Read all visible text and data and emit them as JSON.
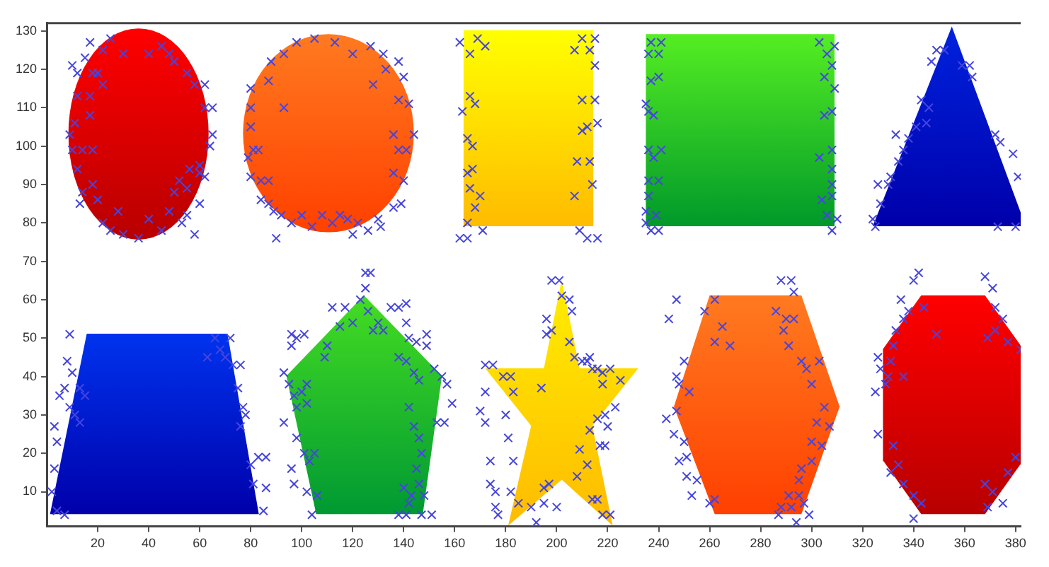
{
  "chart_data": {
    "type": "scatter",
    "xlim": [
      0,
      382
    ],
    "ylim": [
      1,
      132
    ],
    "xticks": [
      20,
      40,
      60,
      80,
      100,
      120,
      140,
      160,
      180,
      200,
      220,
      240,
      260,
      280,
      300,
      320,
      340,
      360,
      380
    ],
    "yticks": [
      10,
      20,
      30,
      40,
      50,
      60,
      70,
      80,
      90,
      100,
      110,
      120,
      130
    ],
    "grid": false,
    "legend": false,
    "marker": "cross",
    "series": [
      {
        "color": "#4545e0",
        "x": [
          10,
          12,
          12,
          11,
          9,
          10,
          14,
          18,
          12,
          14,
          13,
          18,
          20,
          22,
          25,
          28,
          30,
          36,
          40,
          45,
          48,
          53,
          55,
          58,
          60,
          62,
          60,
          64,
          65,
          62,
          65,
          62,
          58,
          55,
          50,
          48,
          45,
          40,
          30,
          25,
          22,
          17,
          18,
          15,
          20,
          22,
          17,
          17,
          50,
          52,
          55,
          56,
          60,
          80,
          80,
          80,
          81,
          79,
          80,
          83,
          84,
          87,
          84,
          87,
          89,
          90,
          92,
          96,
          100,
          104,
          108,
          112,
          115,
          118,
          120,
          122,
          126,
          130,
          131,
          136,
          139,
          140,
          136,
          138,
          141,
          144,
          136,
          142,
          138,
          140,
          133,
          138,
          132,
          127,
          120,
          113,
          105,
          98,
          93,
          88,
          87,
          93,
          128,
          125,
          162,
          166,
          169,
          172,
          166,
          163,
          168,
          165,
          167,
          165,
          167,
          166,
          168,
          165,
          170,
          162,
          165,
          171,
          210,
          215,
          207,
          213,
          215,
          210,
          215,
          212,
          210,
          216,
          208,
          213,
          214,
          207,
          209,
          212,
          216,
          237,
          241,
          236,
          240,
          240,
          237,
          235,
          236,
          238,
          236,
          241,
          238,
          236,
          240,
          236,
          235,
          239,
          235,
          237,
          240,
          303,
          309,
          306,
          308,
          305,
          309,
          305,
          308,
          303,
          308,
          308,
          308,
          304,
          308,
          306,
          310,
          308,
          349,
          352,
          347,
          359,
          362,
          363,
          343,
          346,
          341,
          345,
          333,
          338,
          336,
          334,
          331,
          326,
          330,
          327,
          324,
          325,
          372,
          374,
          373,
          380,
          381,
          379,
          9,
          8,
          10,
          5,
          7,
          9,
          3,
          4,
          3,
          2,
          4,
          7,
          13,
          11,
          13,
          15,
          63,
          66,
          68,
          70,
          72,
          73,
          76,
          75,
          77,
          78,
          76,
          80,
          83,
          86,
          86,
          85,
          81,
          96,
          98,
          101,
          96,
          95,
          93,
          97,
          93,
          98,
          100,
          102,
          102,
          98,
          96,
          97,
          101,
          103,
          105,
          102,
          104,
          106,
          109,
          110,
          112,
          115,
          117,
          120,
          123,
          125,
          127,
          126,
          128,
          130,
          132,
          135,
          138,
          141,
          141,
          142,
          138,
          141,
          145,
          149,
          149,
          144,
          146,
          152,
          155,
          157,
          159,
          156,
          153,
          142,
          144,
          146,
          147,
          145,
          146,
          148,
          142,
          138,
          141,
          147,
          151,
          140,
          143,
          172,
          175,
          172,
          170,
          172,
          174,
          174,
          176,
          176,
          177,
          179,
          182,
          183,
          180,
          181,
          183,
          182,
          185,
          190,
          195,
          200,
          192,
          195,
          197,
          194,
          196,
          198,
          196,
          198,
          201,
          202,
          205,
          206,
          205,
          207,
          210,
          212,
          213,
          214,
          216,
          218,
          221,
          225,
          223,
          218,
          219,
          216,
          220,
          213,
          217,
          219,
          209,
          212,
          214,
          216,
          218,
          221,
          208,
          244,
          247,
          247,
          250,
          248,
          252,
          247,
          243,
          246,
          250,
          251,
          248,
          251,
          255,
          253,
          260,
          262,
          258,
          262,
          265,
          262,
          268,
          288,
          292,
          293,
          286,
          290,
          293,
          289,
          291,
          296,
          298,
          303,
          300,
          305,
          302,
          307,
          300,
          304,
          300,
          296,
          295,
          291,
          288,
          292,
          297,
          299,
          287,
          294,
          295,
          326,
          327,
          331,
          332,
          333,
          336,
          335,
          338,
          340,
          342,
          344,
          349,
          325,
          330,
          336,
          329,
          326,
          332,
          334,
          331,
          336,
          340,
          343,
          340,
          368,
          371,
          372,
          375,
          372,
          369,
          377,
          382,
          380,
          377,
          371,
          368,
          369,
          375
        ],
        "values": [
          121,
          119,
          113,
          106,
          103,
          99,
          99,
          99,
          94,
          88,
          85,
          90,
          86,
          80,
          78,
          83,
          77,
          76,
          81,
          78,
          83,
          80,
          82,
          77,
          85,
          92,
          95,
          100,
          103,
          110,
          110,
          116,
          116,
          119,
          122,
          124,
          126,
          124,
          124,
          128,
          125,
          127,
          119,
          123,
          119,
          116,
          113,
          108,
          88,
          91,
          89,
          94,
          93,
          115,
          110,
          105,
          99,
          97,
          92,
          99,
          91,
          91,
          86,
          85,
          83,
          76,
          82,
          80,
          82,
          79,
          82,
          80,
          82,
          81,
          77,
          80,
          78,
          81,
          79,
          84,
          85,
          91,
          93,
          99,
          99,
          103,
          103,
          111,
          112,
          118,
          120,
          122,
          124,
          126,
          124,
          127,
          128,
          127,
          124,
          122,
          117,
          110,
          116,
          67,
          127,
          124,
          128,
          126,
          113,
          109,
          111,
          102,
          100,
          93,
          94,
          89,
          84,
          80,
          87,
          76,
          76,
          78,
          128,
          128,
          125,
          125,
          121,
          112,
          112,
          105,
          104,
          106,
          96,
          96,
          90,
          87,
          78,
          76,
          76,
          127,
          127,
          124,
          124,
          118,
          117,
          111,
          109,
          108,
          99,
          99,
          97,
          91,
          91,
          87,
          83,
          82,
          80,
          78,
          78,
          127,
          126,
          124,
          121,
          118,
          115,
          108,
          109,
          97,
          99,
          94,
          90,
          86,
          87,
          82,
          81,
          78,
          125,
          125,
          122,
          121,
          121,
          118,
          112,
          110,
          105,
          106,
          103,
          102,
          99,
          96,
          92,
          90,
          90,
          85,
          81,
          79,
          103,
          101,
          79,
          79,
          92,
          98,
          51,
          44,
          41,
          35,
          37,
          32,
          27,
          23,
          16,
          10,
          5,
          4,
          37,
          30,
          28,
          35,
          45,
          50,
          47,
          45,
          50,
          43,
          43,
          37,
          32,
          30,
          27,
          17,
          19,
          19,
          11,
          5,
          12,
          51,
          50,
          51,
          48,
          38,
          41,
          35,
          28,
          32,
          36,
          33,
          38,
          24,
          16,
          12,
          20,
          18,
          20,
          10,
          4,
          9,
          45,
          48,
          58,
          53,
          58,
          54,
          60,
          63,
          67,
          57,
          52,
          54,
          52,
          58,
          58,
          59,
          54,
          50,
          45,
          44,
          49,
          48,
          51,
          41,
          39,
          42,
          40,
          38,
          33,
          28,
          28,
          32,
          27,
          24,
          20,
          16,
          12,
          9,
          7,
          4,
          4,
          4,
          4,
          11,
          9,
          43,
          43,
          36,
          31,
          28,
          18,
          12,
          10,
          6,
          4,
          40,
          40,
          36,
          30,
          24,
          18,
          10,
          7,
          6,
          7,
          6,
          2,
          11,
          12,
          37,
          51,
          52,
          55,
          65,
          65,
          61,
          60,
          57,
          49,
          45,
          44,
          44,
          45,
          42,
          42,
          41,
          42,
          39,
          32,
          38,
          30,
          29,
          27,
          26,
          22,
          22,
          21,
          17,
          8,
          8,
          4,
          4,
          14,
          55,
          60,
          40,
          44,
          38,
          36,
          31,
          29,
          25,
          23,
          19,
          18,
          14,
          13,
          9,
          7,
          8,
          57,
          60,
          53,
          49,
          48,
          65,
          65,
          62,
          57,
          55,
          55,
          52,
          48,
          44,
          42,
          44,
          38,
          32,
          28,
          27,
          23,
          22,
          18,
          16,
          13,
          9,
          6,
          6,
          7,
          4,
          4,
          2,
          9,
          45,
          42,
          44,
          48,
          52,
          55,
          60,
          57,
          65,
          67,
          58,
          51,
          36,
          40,
          40,
          38,
          25,
          22,
          17,
          15,
          12,
          9,
          7,
          3,
          66,
          63,
          58,
          55,
          52,
          50,
          49,
          47,
          19,
          15,
          10,
          12,
          6,
          7
        ]
      }
    ]
  }
}
